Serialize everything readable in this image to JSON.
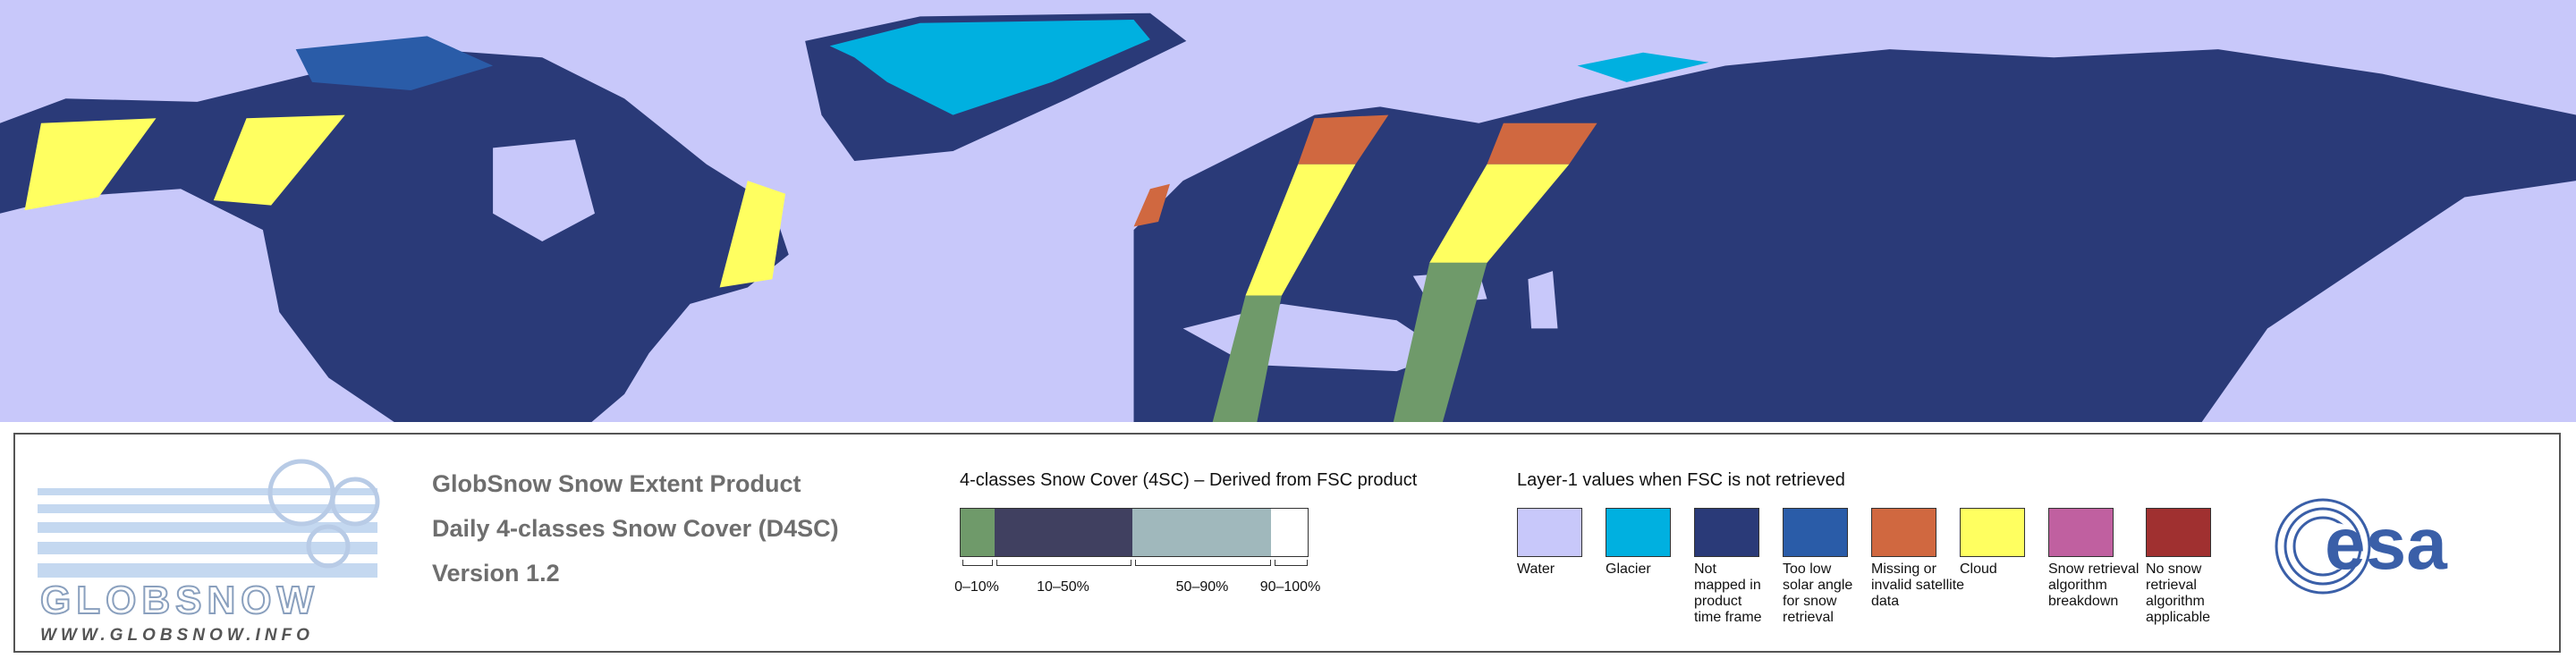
{
  "logo": {
    "wordmark": "GLOBSNOW",
    "url": "WWW.GLOBSNOW.INFO",
    "agency": "esa"
  },
  "product": {
    "title": "GlobSnow Snow Extent Product",
    "subtitle": "Daily 4-classes Snow Cover (D4SC)",
    "version": "Version 1.2"
  },
  "snow_cover_legend": {
    "title": "4-classes Snow Cover (4SC) – Derived from FSC product",
    "classes": [
      {
        "label": "0–10%",
        "color": "#6f9a6a"
      },
      {
        "label": "10–50%",
        "color": "#404060"
      },
      {
        "label": "50–90%",
        "color": "#a0b8bc"
      },
      {
        "label": "90–100%",
        "color": "#ffffff"
      }
    ]
  },
  "layer1_legend": {
    "title": "Layer-1 values when FSC is not retrieved",
    "items": [
      {
        "label": [
          "Water"
        ],
        "color": "#c8c8fa"
      },
      {
        "label": [
          "Glacier"
        ],
        "color": "#00b0e0"
      },
      {
        "label": [
          "Not",
          "mapped in",
          "product",
          "time frame"
        ],
        "color": "#2a3a78"
      },
      {
        "label": [
          "Too low",
          "solar angle",
          "for snow",
          "retrieval"
        ],
        "color": "#2a5ca8"
      },
      {
        "label": [
          "Missing or",
          "invalid satellite",
          "data"
        ],
        "color": "#d06840"
      },
      {
        "label": [
          "Cloud"
        ],
        "color": "#ffff60"
      },
      {
        "label": [
          "Snow retrieval",
          "algorithm",
          "breakdown"
        ],
        "color": "#c060a0"
      },
      {
        "label": [
          "No snow",
          "retrieval",
          "algorithm",
          "applicable"
        ],
        "color": "#a03030"
      }
    ]
  }
}
